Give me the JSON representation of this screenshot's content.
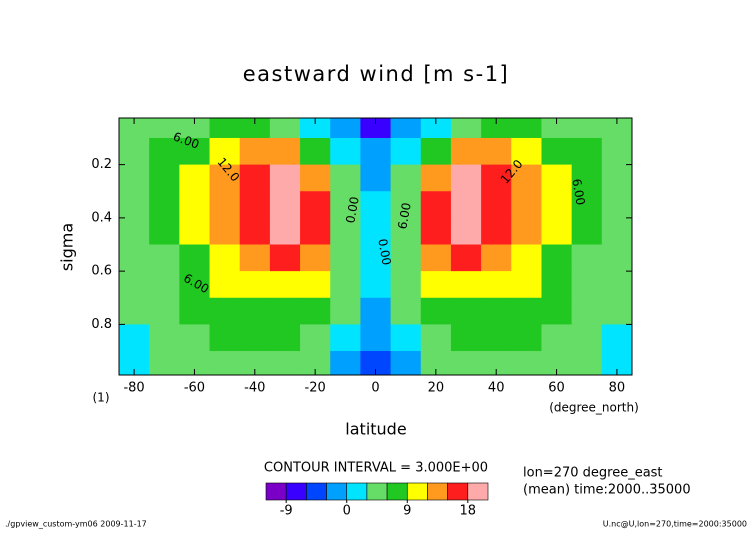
{
  "chart_data": {
    "type": "contour",
    "title": "eastward wind [m s-1]",
    "xlabel": "latitude",
    "xunits": "(degree_north)",
    "ylabel": "sigma",
    "yunits": "(1)",
    "x": [
      -80,
      -70,
      -60,
      -50,
      -40,
      -30,
      -20,
      -10,
      0,
      10,
      20,
      30,
      40,
      50,
      60,
      70,
      80
    ],
    "y": [
      0.05,
      0.15,
      0.25,
      0.35,
      0.45,
      0.55,
      0.65,
      0.75,
      0.85,
      0.95
    ],
    "z": [
      [
        3,
        4,
        5,
        6,
        6,
        5,
        2,
        -2,
        -8,
        -2,
        2,
        5,
        6,
        6,
        5,
        4,
        3
      ],
      [
        4,
        6,
        8,
        10,
        12,
        13,
        8,
        1,
        -2,
        1,
        8,
        13,
        12,
        10,
        8,
        6,
        4
      ],
      [
        4,
        6,
        9,
        12,
        16,
        18,
        13,
        3,
        -1,
        3,
        13,
        18,
        16,
        12,
        9,
        6,
        4
      ],
      [
        4,
        6,
        9,
        13,
        17,
        20,
        15,
        4,
        0,
        4,
        15,
        20,
        17,
        13,
        9,
        6,
        4
      ],
      [
        4,
        6,
        9,
        12,
        16,
        18,
        15,
        5,
        0,
        5,
        15,
        18,
        16,
        12,
        9,
        6,
        4
      ],
      [
        3,
        5,
        8,
        11,
        14,
        15,
        12,
        5,
        0,
        5,
        12,
        15,
        14,
        11,
        8,
        5,
        3
      ],
      [
        3,
        5,
        7,
        9,
        11,
        11,
        9,
        4,
        0,
        4,
        9,
        11,
        11,
        9,
        7,
        5,
        3
      ],
      [
        3,
        4,
        6,
        7,
        8,
        8,
        6,
        3,
        -1,
        3,
        6,
        8,
        8,
        7,
        6,
        4,
        3
      ],
      [
        2,
        4,
        5,
        6,
        6,
        6,
        5,
        1,
        -3,
        1,
        5,
        6,
        6,
        6,
        5,
        4,
        2
      ],
      [
        2,
        3,
        4,
        4,
        4,
        4,
        3,
        -1,
        -5,
        -1,
        3,
        4,
        4,
        4,
        4,
        3,
        2
      ]
    ],
    "xlim": [
      -85,
      85
    ],
    "xticks": [
      -80,
      -60,
      -40,
      -20,
      0,
      20,
      40,
      60,
      80
    ],
    "ylim": [
      0.99,
      0.025
    ],
    "yticks": [
      0.2,
      0.4,
      0.6,
      0.8
    ],
    "levels": [
      -12,
      -9,
      -6,
      -3,
      0,
      3,
      6,
      9,
      12,
      15,
      18,
      21
    ],
    "colors": [
      "#7a00c8",
      "#3a00ff",
      "#0046ff",
      "#00a0ff",
      "#00e4ff",
      "#66dd66",
      "#22c822",
      "#ffff00",
      "#ff9a1e",
      "#ff1e1e",
      "#ffaaaa"
    ],
    "colorbar_ticks": [
      -9,
      0,
      9,
      18
    ],
    "contour_labels": [
      "6.00",
      "12.0",
      "0.00",
      "6.00",
      "0.00",
      "12.0",
      "6.00",
      "6.00"
    ],
    "contour_interval": "CONTOUR INTERVAL = 3.000E+00",
    "info": [
      "lon=270 degree_east",
      "(mean) time:2000..35000"
    ],
    "footer_left": "./gpview_custom-ym06  2009-11-17",
    "footer_right": "U.nc@U,lon=270,time=2000:35000"
  }
}
